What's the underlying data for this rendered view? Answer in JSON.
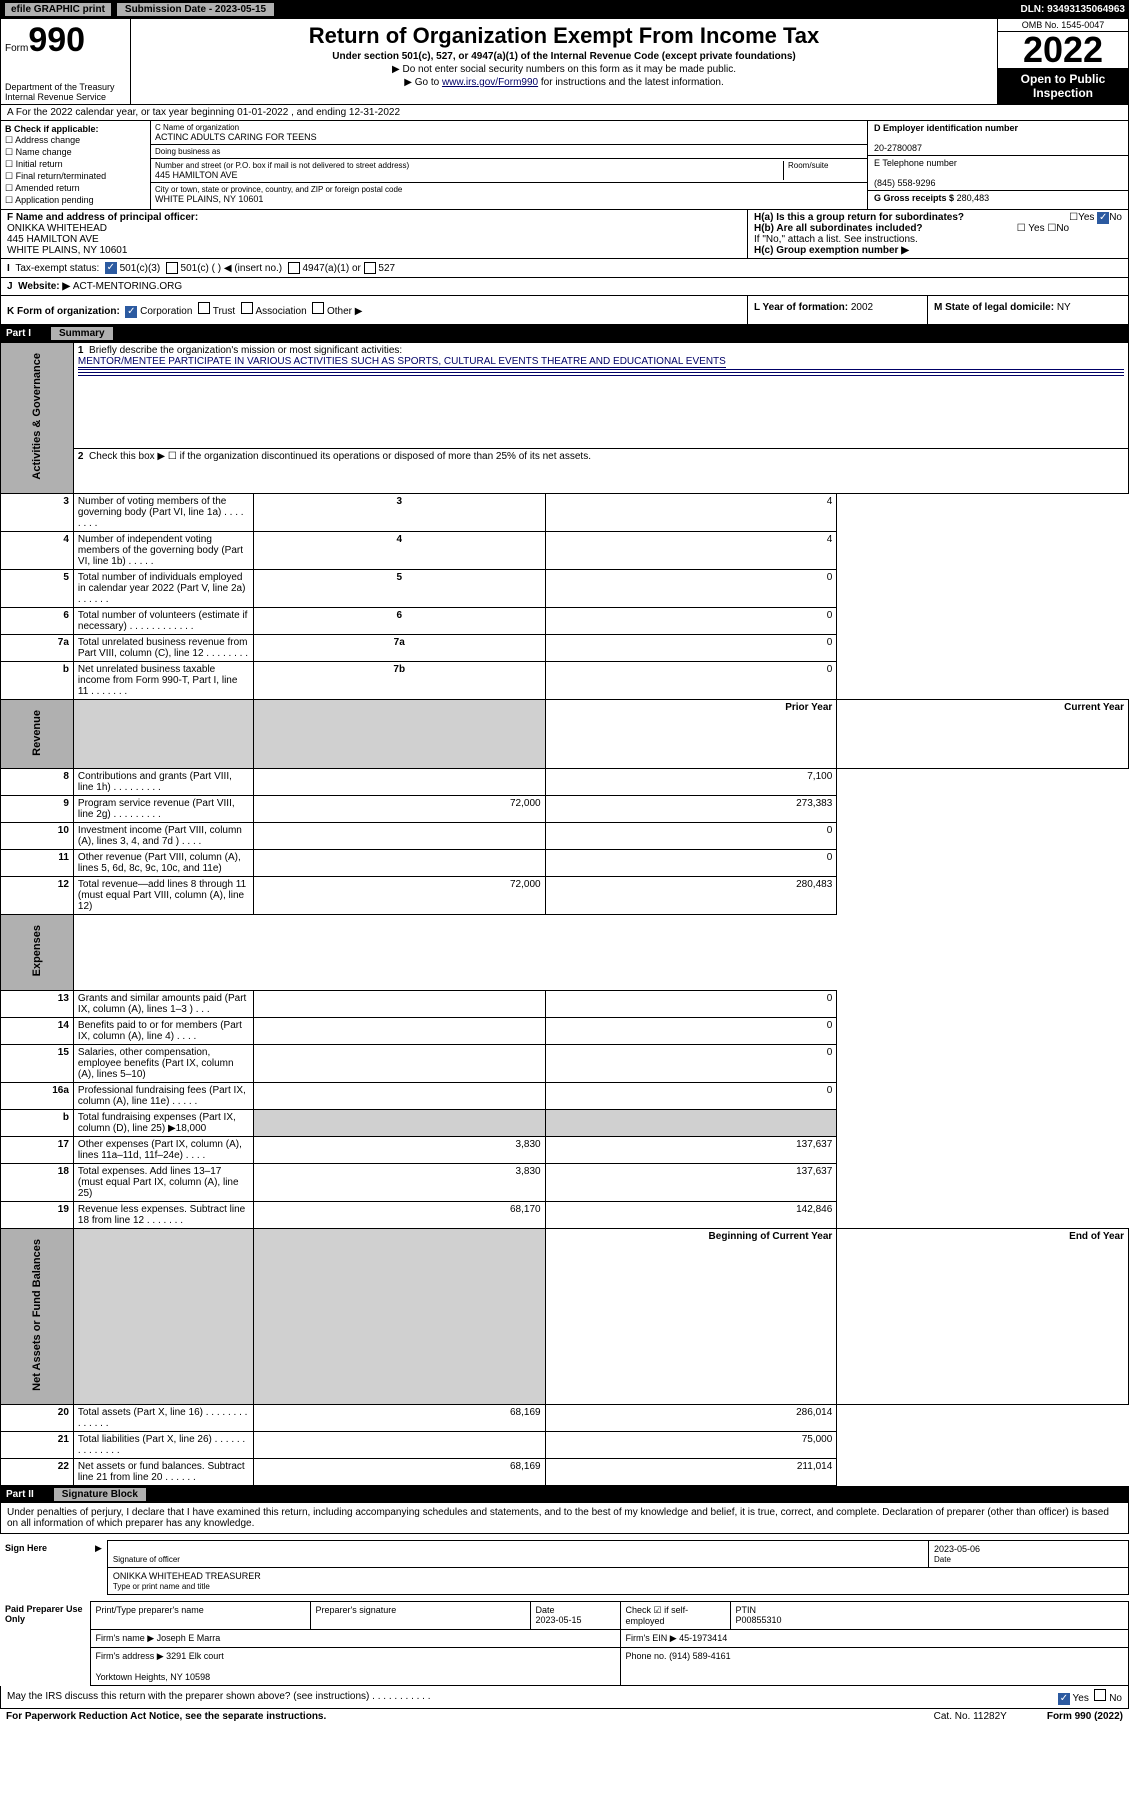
{
  "topbar": {
    "efile": "efile GRAPHIC print",
    "submission": "Submission Date - 2023-05-15",
    "dln": "DLN: 93493135064963"
  },
  "header": {
    "form_word": "Form",
    "form_num": "990",
    "dept": "Department of the Treasury\nInternal Revenue Service",
    "title": "Return of Organization Exempt From Income Tax",
    "sub1": "Under section 501(c), 527, or 4947(a)(1) of the Internal Revenue Code (except private foundations)",
    "sub2": "▶ Do not enter social security numbers on this form as it may be made public.",
    "sub3_pre": "▶ Go to ",
    "sub3_link": "www.irs.gov/Form990",
    "sub3_post": " for instructions and the latest information.",
    "omb": "OMB No. 1545-0047",
    "year": "2022",
    "open": "Open to Public Inspection"
  },
  "rowA": "A For the 2022 calendar year, or tax year beginning 01-01-2022   , and ending 12-31-2022",
  "colB": {
    "title": "B Check if applicable:",
    "items": [
      "Address change",
      "Name change",
      "Initial return",
      "Final return/terminated",
      "Amended return",
      "Application pending"
    ]
  },
  "colC": {
    "name_lbl": "C Name of organization",
    "name": "ACTINC ADULTS CARING FOR TEENS",
    "dba_lbl": "Doing business as",
    "dba": "",
    "addr_lbl": "Number and street (or P.O. box if mail is not delivered to street address)",
    "room_lbl": "Room/suite",
    "addr": "445 HAMILTON AVE",
    "city_lbl": "City or town, state or province, country, and ZIP or foreign postal code",
    "city": "WHITE PLAINS, NY  10601"
  },
  "colD": {
    "ein_lbl": "D Employer identification number",
    "ein": "20-2780087",
    "phone_lbl": "E Telephone number",
    "phone": "(845) 558-9296",
    "gross_lbl": "G Gross receipts $",
    "gross": "280,483"
  },
  "rowF": {
    "lbl": "F Name and address of principal officer:",
    "name": "ONIKKA WHITEHEAD",
    "addr1": "445 HAMILTON AVE",
    "addr2": "WHITE PLAINS, NY  10601"
  },
  "rowH": {
    "ha": "H(a)  Is this a group return for subordinates?",
    "hb": "H(b)  Are all subordinates included?",
    "hb_note": "If \"No,\" attach a list. See instructions.",
    "hc": "H(c)  Group exemption number ▶",
    "yes": "Yes",
    "no": "No"
  },
  "rowI": {
    "lbl": "Tax-exempt status:",
    "opt1": "501(c)(3)",
    "opt2": "501(c) (  ) ◀ (insert no.)",
    "opt3": "4947(a)(1) or",
    "opt4": "527"
  },
  "rowJ": {
    "lbl": "Website: ▶",
    "val": "ACT-MENTORING.ORG"
  },
  "rowK": {
    "k1": "K Form of organization:",
    "corp": "Corporation",
    "trust": "Trust",
    "assoc": "Association",
    "other": "Other ▶",
    "k2l": "L Year of formation:",
    "k2v": "2002",
    "k3l": "M State of legal domicile:",
    "k3v": "NY"
  },
  "part1": {
    "num": "Part I",
    "title": "Summary"
  },
  "summary": {
    "l1": "Briefly describe the organization's mission or most significant activities:",
    "l1v": "MENTOR/MENTEE PARTICIPATE IN VARIOUS ACTIVITIES SUCH AS SPORTS, CULTURAL EVENTS THEATRE AND EDUCATIONAL EVENTS",
    "l2": "Check this box ▶ ☐  if the organization discontinued its operations or disposed of more than 25% of its net assets.",
    "rows_gov": [
      {
        "n": "3",
        "t": "Number of voting members of the governing body (Part VI, line 1a)   .    .    .    .    .    .    .    .",
        "b": "3",
        "v": "4"
      },
      {
        "n": "4",
        "t": "Number of independent voting members of the governing body (Part VI, line 1b)   .    .    .    .    .",
        "b": "4",
        "v": "4"
      },
      {
        "n": "5",
        "t": "Total number of individuals employed in calendar year 2022 (Part V, line 2a)   .    .    .    .    .    .",
        "b": "5",
        "v": "0"
      },
      {
        "n": "6",
        "t": "Total number of volunteers (estimate if necessary)   .    .    .    .    .    .    .    .    .    .    .    .",
        "b": "6",
        "v": "0"
      },
      {
        "n": "7a",
        "t": "Total unrelated business revenue from Part VIII, column (C), line 12   .    .    .    .    .    .    .    .",
        "b": "7a",
        "v": "0"
      },
      {
        "n": "b",
        "t": "Net unrelated business taxable income from Form 990-T, Part I, line 11   .    .    .    .    .    .    .",
        "b": "7b",
        "v": "0"
      }
    ],
    "hdr_prior": "Prior Year",
    "hdr_curr": "Current Year",
    "rows_rev": [
      {
        "n": "8",
        "t": "Contributions and grants (Part VIII, line 1h)   .    .    .    .    .    .    .    .    .",
        "p": "",
        "c": "7,100"
      },
      {
        "n": "9",
        "t": "Program service revenue (Part VIII, line 2g)   .    .    .    .    .    .    .    .    .",
        "p": "72,000",
        "c": "273,383"
      },
      {
        "n": "10",
        "t": "Investment income (Part VIII, column (A), lines 3, 4, and 7d )   .    .    .    .",
        "p": "",
        "c": "0"
      },
      {
        "n": "11",
        "t": "Other revenue (Part VIII, column (A), lines 5, 6d, 8c, 9c, 10c, and 11e)",
        "p": "",
        "c": "0"
      },
      {
        "n": "12",
        "t": "Total revenue—add lines 8 through 11 (must equal Part VIII, column (A), line 12)",
        "p": "72,000",
        "c": "280,483"
      }
    ],
    "rows_exp": [
      {
        "n": "13",
        "t": "Grants and similar amounts paid (Part IX, column (A), lines 1–3 )   .    .    .",
        "p": "",
        "c": "0"
      },
      {
        "n": "14",
        "t": "Benefits paid to or for members (Part IX, column (A), line 4)   .    .    .    .",
        "p": "",
        "c": "0"
      },
      {
        "n": "15",
        "t": "Salaries, other compensation, employee benefits (Part IX, column (A), lines 5–10)",
        "p": "",
        "c": "0"
      },
      {
        "n": "16a",
        "t": "Professional fundraising fees (Part IX, column (A), line 11e)   .    .    .    .    .",
        "p": "",
        "c": "0"
      }
    ],
    "l16b": "Total fundraising expenses (Part IX, column (D), line 25) ▶18,000",
    "rows_exp2": [
      {
        "n": "17",
        "t": "Other expenses (Part IX, column (A), lines 11a–11d, 11f–24e)   .    .    .    .",
        "p": "3,830",
        "c": "137,637"
      },
      {
        "n": "18",
        "t": "Total expenses. Add lines 13–17 (must equal Part IX, column (A), line 25)",
        "p": "3,830",
        "c": "137,637"
      },
      {
        "n": "19",
        "t": "Revenue less expenses. Subtract line 18 from line 12   .    .    .    .    .    .    .",
        "p": "68,170",
        "c": "142,846"
      }
    ],
    "hdr_beg": "Beginning of Current Year",
    "hdr_end": "End of Year",
    "rows_na": [
      {
        "n": "20",
        "t": "Total assets (Part X, line 16)   .    .    .    .    .    .    .    .    .    .    .    .    .    .",
        "p": "68,169",
        "c": "286,014"
      },
      {
        "n": "21",
        "t": "Total liabilities (Part X, line 26)   .    .    .    .    .    .    .    .    .    .    .    .    .    .",
        "p": "",
        "c": "75,000"
      },
      {
        "n": "22",
        "t": "Net assets or fund balances. Subtract line 21 from line 20   .    .    .    .    .    .",
        "p": "68,169",
        "c": "211,014"
      }
    ]
  },
  "vside": {
    "gov": "Activities & Governance",
    "rev": "Revenue",
    "exp": "Expenses",
    "na": "Net Assets or Fund Balances"
  },
  "part2": {
    "num": "Part II",
    "title": "Signature Block"
  },
  "sig": {
    "penalty": "Under penalties of perjury, I declare that I have examined this return, including accompanying schedules and statements, and to the best of my knowledge and belief, it is true, correct, and complete. Declaration of preparer (other than officer) is based on all information of which preparer has any knowledge.",
    "sign_here": "Sign Here",
    "sig_officer": "Signature of officer",
    "date1": "2023-05-06",
    "date_lbl": "Date",
    "name_title": "ONIKKA WHITEHEAD  TREASURER",
    "type_name": "Type or print name and title",
    "paid": "Paid Preparer Use Only",
    "prep_name_lbl": "Print/Type preparer's name",
    "prep_sig_lbl": "Preparer's signature",
    "date2": "2023-05-15",
    "check_lbl": "Check ☑ if self-employed",
    "ptin_lbl": "PTIN",
    "ptin": "P00855310",
    "firm_name_lbl": "Firm's name   ▶",
    "firm_name": "Joseph E Marra",
    "firm_ein_lbl": "Firm's EIN ▶",
    "firm_ein": "45-1973414",
    "firm_addr_lbl": "Firm's address ▶",
    "firm_addr1": "3291 Elk court",
    "firm_addr2": "Yorktown Heights, NY  10598",
    "phone_lbl": "Phone no.",
    "phone": "(914) 589-4161",
    "may_irs": "May the IRS discuss this return with the preparer shown above? (see instructions)   .    .    .    .    .    .    .    .    .    .    .",
    "yes": "Yes",
    "no": "No"
  },
  "footer": {
    "f1": "For Paperwork Reduction Act Notice, see the separate instructions.",
    "f2": "Cat. No. 11282Y",
    "f3": "Form 990 (2022)"
  }
}
